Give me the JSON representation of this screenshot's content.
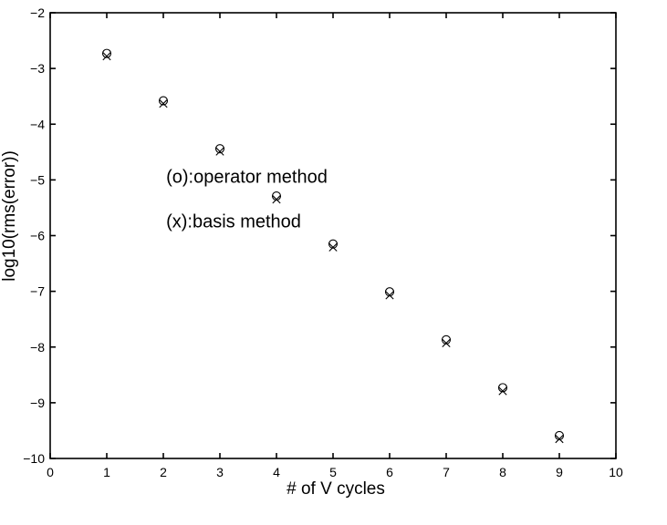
{
  "chart_data": {
    "type": "scatter",
    "title": "",
    "xlabel": "# of V cycles",
    "ylabel": "log10(rms(error))",
    "xlim": [
      0,
      10
    ],
    "ylim": [
      -10,
      -2
    ],
    "xticks": [
      0,
      1,
      2,
      3,
      4,
      5,
      6,
      7,
      8,
      9,
      10
    ],
    "yticks": [
      -2,
      -3,
      -4,
      -5,
      -6,
      -7,
      -8,
      -9,
      -10
    ],
    "xtick_labels": [
      "0",
      "1",
      "2",
      "3",
      "4",
      "5",
      "6",
      "7",
      "8",
      "9",
      "10"
    ],
    "ytick_labels": [
      "−2",
      "−3",
      "−4",
      "−5",
      "−6",
      "−7",
      "−8",
      "−9",
      "−10"
    ],
    "grid": false,
    "legend": "none",
    "annotations": [
      {
        "text": "(o):operator method",
        "x": 2.05,
        "y": -5.05
      },
      {
        "text": "(x):basis method",
        "x": 2.05,
        "y": -5.85
      }
    ],
    "series": [
      {
        "marker": "o",
        "x": [
          1,
          2,
          3,
          4,
          5,
          6,
          7,
          8,
          9
        ],
        "y": [
          -2.73,
          -3.58,
          -4.44,
          -5.29,
          -6.15,
          -7.01,
          -7.87,
          -8.73,
          -9.59
        ]
      },
      {
        "marker": "x",
        "x": [
          1,
          2,
          3,
          4,
          5,
          6,
          7,
          8,
          9
        ],
        "y": [
          -2.78,
          -3.63,
          -4.49,
          -5.35,
          -6.21,
          -7.07,
          -7.93,
          -8.79,
          -9.65
        ]
      }
    ]
  }
}
